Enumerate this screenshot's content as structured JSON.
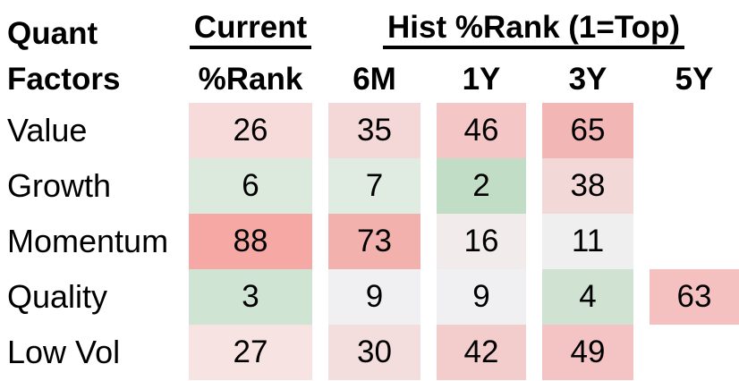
{
  "title": {
    "line1": "Quant",
    "line2": "Factors"
  },
  "header": {
    "current_group_label": "Current",
    "current_col_label": "%Rank",
    "hist_group_label": "Hist %Rank (1=Top)",
    "hist_col_labels": [
      "6M",
      "1Y",
      "3Y",
      "5Y"
    ]
  },
  "chart_data": {
    "type": "heatmap",
    "rows": [
      "Value",
      "Growth",
      "Momentum",
      "Quality",
      "Low Vol"
    ],
    "columns": [
      "Current %Rank",
      "6M",
      "1Y",
      "3Y",
      "5Y"
    ],
    "rank_scale_note": "1=Top",
    "values": [
      [
        26,
        35,
        46,
        65,
        null
      ],
      [
        6,
        7,
        2,
        38,
        null
      ],
      [
        88,
        73,
        16,
        11,
        null
      ],
      [
        3,
        9,
        9,
        4,
        63
      ],
      [
        27,
        30,
        42,
        49,
        null
      ]
    ],
    "cell_colors": [
      [
        "#f6dbda",
        "#f4d8d7",
        "#f4c6c5",
        "#f2b6b4",
        null
      ],
      [
        "#dceadd",
        "#e0ebe2",
        "#c2ddc6",
        "#f2d9d8",
        null
      ],
      [
        "#f6a8a5",
        "#f3b1ae",
        "#f2ebec",
        "#efeff0",
        null
      ],
      [
        "#cfe4d3",
        "#f0eff1",
        "#f0eff1",
        "#d0e3d3",
        "#f5c1c0"
      ],
      [
        "#f6e3e2",
        "#f4dedd",
        "#f3cdcc",
        "#f3c4c3",
        null
      ]
    ],
    "color_legend": {
      "low_green": "#c2ddc6",
      "neutral_white": "#f0eff1",
      "high_red": "#f6a8a5"
    },
    "layout": {
      "legend": "none",
      "grid": "off"
    }
  }
}
